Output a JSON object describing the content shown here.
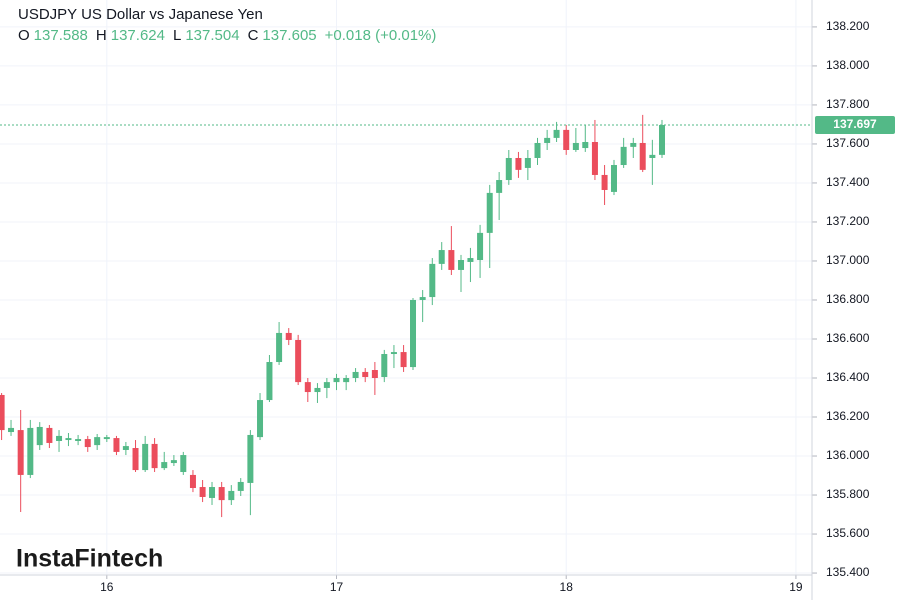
{
  "chart_data": {
    "type": "candlestick",
    "title": "USDJPY US Dollar vs Japanese Yen",
    "ohlc": [
      {
        "label": "O",
        "value": 137.588
      },
      {
        "label": "H",
        "value": 137.624
      },
      {
        "label": "L",
        "value": 137.504
      },
      {
        "label": "C",
        "value": 137.605
      }
    ],
    "change": "+0.018 (+0.01%)",
    "watermark": "InstaFintech",
    "x": [
      15.542,
      15.583,
      15.625,
      15.667,
      15.708,
      15.75,
      15.792,
      15.833,
      15.875,
      15.917,
      15.958,
      16,
      16.042,
      16.083,
      16.125,
      16.167,
      16.208,
      16.25,
      16.292,
      16.333,
      16.375,
      16.417,
      16.458,
      16.5,
      16.542,
      16.583,
      16.625,
      16.667,
      16.708,
      16.75,
      16.792,
      16.833,
      16.875,
      16.917,
      16.958,
      17,
      17.042,
      17.083,
      17.125,
      17.167,
      17.208,
      17.25,
      17.292,
      17.333,
      17.375,
      17.417,
      17.458,
      17.5,
      17.542,
      17.583,
      17.625,
      17.667,
      17.708,
      17.75,
      17.792,
      17.833,
      17.875,
      17.917,
      17.958,
      18,
      18.042,
      18.083,
      18.125,
      18.167,
      18.208,
      18.25,
      18.292,
      18.333,
      18.375,
      18.417
    ],
    "open": [
      136.313,
      136.123,
      136.133,
      135.903,
      136.056,
      136.144,
      136.077,
      136.082,
      136.077,
      136.087,
      136.056,
      136.087,
      136.092,
      136.031,
      136.041,
      135.928,
      136.062,
      135.938,
      135.964,
      135.918,
      135.903,
      135.841,
      135.785,
      135.841,
      135.774,
      135.821,
      135.862,
      136.097,
      136.287,
      136.482,
      136.631,
      136.595,
      136.379,
      136.328,
      136.349,
      136.379,
      136.379,
      136.4,
      136.431,
      136.441,
      136.405,
      136.523,
      136.533,
      136.456,
      136.8,
      136.815,
      136.985,
      137.056,
      136.954,
      136.995,
      137.005,
      137.144,
      137.349,
      137.415,
      137.528,
      137.477,
      137.528,
      137.605,
      137.631,
      137.672,
      137.569,
      137.579,
      137.61,
      137.441,
      137.354,
      137.492,
      137.585,
      137.605,
      137.528,
      137.544
    ],
    "high": [
      136.323,
      136.185,
      136.236,
      136.185,
      136.174,
      136.159,
      136.133,
      136.118,
      136.108,
      136.103,
      136.113,
      136.108,
      136.103,
      136.072,
      136.082,
      136.103,
      136.092,
      136.021,
      136.005,
      136.021,
      135.928,
      135.877,
      135.867,
      135.867,
      135.851,
      135.887,
      136.133,
      136.323,
      136.518,
      136.687,
      136.656,
      136.621,
      136.4,
      136.374,
      136.4,
      136.421,
      136.415,
      136.451,
      136.451,
      136.482,
      136.544,
      136.569,
      136.569,
      136.81,
      136.851,
      137.015,
      137.097,
      137.179,
      137.031,
      137.067,
      137.185,
      137.39,
      137.456,
      137.569,
      137.559,
      137.569,
      137.631,
      137.672,
      137.713,
      137.697,
      137.682,
      137.697,
      137.723,
      137.492,
      137.518,
      137.631,
      137.631,
      137.749,
      137.621,
      137.723
    ],
    "low": [
      136.082,
      136.103,
      135.713,
      135.887,
      136.031,
      136.041,
      136.021,
      136.051,
      136.056,
      136.021,
      136.031,
      136.072,
      136.005,
      136.005,
      135.918,
      135.918,
      135.918,
      135.928,
      135.949,
      135.903,
      135.815,
      135.764,
      135.749,
      135.687,
      135.749,
      135.795,
      135.697,
      136.082,
      136.277,
      136.467,
      136.569,
      136.364,
      136.277,
      136.272,
      136.297,
      136.338,
      136.338,
      136.379,
      136.379,
      136.313,
      136.379,
      136.451,
      136.431,
      136.441,
      136.687,
      136.774,
      136.954,
      136.928,
      136.841,
      136.892,
      136.913,
      136.964,
      137.21,
      137.39,
      137.426,
      137.415,
      137.492,
      137.569,
      137.61,
      137.544,
      137.559,
      137.559,
      137.415,
      137.287,
      137.338,
      137.477,
      137.528,
      137.456,
      137.39,
      137.528
    ],
    "close": [
      136.133,
      136.144,
      135.903,
      136.144,
      136.149,
      136.067,
      136.103,
      136.092,
      136.087,
      136.046,
      136.097,
      136.097,
      136.021,
      136.051,
      135.928,
      136.062,
      135.938,
      135.969,
      135.979,
      136.005,
      135.836,
      135.79,
      135.841,
      135.774,
      135.821,
      135.867,
      136.108,
      136.287,
      136.482,
      136.631,
      136.595,
      136.379,
      136.328,
      136.349,
      136.379,
      136.4,
      136.4,
      136.431,
      136.405,
      136.4,
      136.523,
      136.533,
      136.456,
      136.8,
      136.815,
      136.985,
      137.056,
      136.954,
      137.005,
      137.015,
      137.144,
      137.349,
      137.415,
      137.528,
      137.467,
      137.528,
      137.605,
      137.631,
      137.672,
      137.569,
      137.605,
      137.61,
      137.441,
      137.364,
      137.492,
      137.585,
      137.605,
      137.467,
      137.544,
      137.697
    ],
    "up_color": "#53b987",
    "down_color": "#eb4d5c",
    "last_price": 137.697,
    "xlim": [
      15.535,
      19.07
    ],
    "xticks": [
      16,
      17,
      18,
      19
    ],
    "ylim": [
      135.39,
      138.338
    ],
    "yticks": [
      {
        "value": 135.4,
        "label": "135.400"
      },
      {
        "value": 135.6,
        "label": "135.600"
      },
      {
        "value": 135.8,
        "label": "135.800"
      },
      {
        "value": 136.0,
        "label": "136.000"
      },
      {
        "value": 136.2,
        "label": "136.200"
      },
      {
        "value": 136.4,
        "label": "136.400"
      },
      {
        "value": 136.6,
        "label": "136.600"
      },
      {
        "value": 136.8,
        "label": "136.800"
      },
      {
        "value": 137.0,
        "label": "137.000"
      },
      {
        "value": 137.2,
        "label": "137.200"
      },
      {
        "value": 137.4,
        "label": "137.400"
      },
      {
        "value": 137.6,
        "label": "137.600"
      },
      {
        "value": 137.8,
        "label": "137.800"
      },
      {
        "value": 138.0,
        "label": "138.000"
      },
      {
        "value": 138.2,
        "label": "138.200"
      }
    ],
    "grid": true
  }
}
